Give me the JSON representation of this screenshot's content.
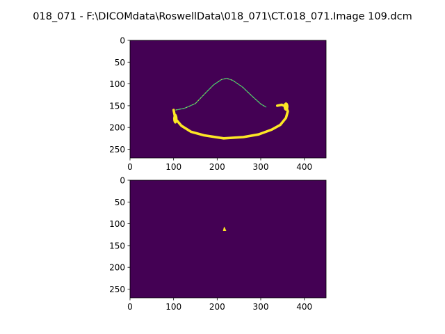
{
  "figure_title": "018_071 - F:\\DICOMdata\\RoswellData\\018_071\\CT.018_071.Image 109.dcm",
  "colors": {
    "background": "#440154",
    "foreground": "#fde725",
    "midtone": "#35b779"
  },
  "chart_data": [
    {
      "type": "heatmap",
      "title": "",
      "colormap": "viridis",
      "image_shape": [
        270,
        450
      ],
      "xlim": [
        0,
        450
      ],
      "ylim": [
        270,
        0
      ],
      "xticks": [
        0,
        100,
        200,
        300,
        400
      ],
      "yticks": [
        0,
        50,
        100,
        150,
        200,
        250
      ],
      "mask_description_points": {
        "outer_contour": [
          [
            100,
            160
          ],
          [
            104,
            180
          ],
          [
            118,
            196
          ],
          [
            140,
            210
          ],
          [
            170,
            218
          ],
          [
            215,
            225
          ],
          [
            260,
            222
          ],
          [
            295,
            216
          ],
          [
            325,
            205
          ],
          [
            345,
            194
          ],
          [
            358,
            178
          ],
          [
            362,
            163
          ],
          [
            358,
            152
          ],
          [
            348,
            148
          ],
          [
            338,
            150
          ]
        ],
        "inner_arch": [
          [
            105,
            160
          ],
          [
            125,
            156
          ],
          [
            150,
            145
          ],
          [
            172,
            122
          ],
          [
            192,
            102
          ],
          [
            210,
            90
          ],
          [
            222,
            87
          ],
          [
            236,
            92
          ],
          [
            258,
            107
          ],
          [
            280,
            128
          ],
          [
            300,
            146
          ],
          [
            312,
            153
          ]
        ]
      }
    },
    {
      "type": "heatmap",
      "title": "",
      "colormap": "viridis",
      "image_shape": [
        270,
        450
      ],
      "xlim": [
        0,
        450
      ],
      "ylim": [
        270,
        0
      ],
      "xticks": [
        0,
        100,
        200,
        300,
        400
      ],
      "yticks": [
        0,
        50,
        100,
        150,
        200,
        250
      ],
      "mask_description_points": {
        "blob": [
          [
            216,
            108
          ],
          [
            218,
            111
          ],
          [
            220,
            116
          ],
          [
            214,
            116
          ]
        ]
      }
    }
  ]
}
